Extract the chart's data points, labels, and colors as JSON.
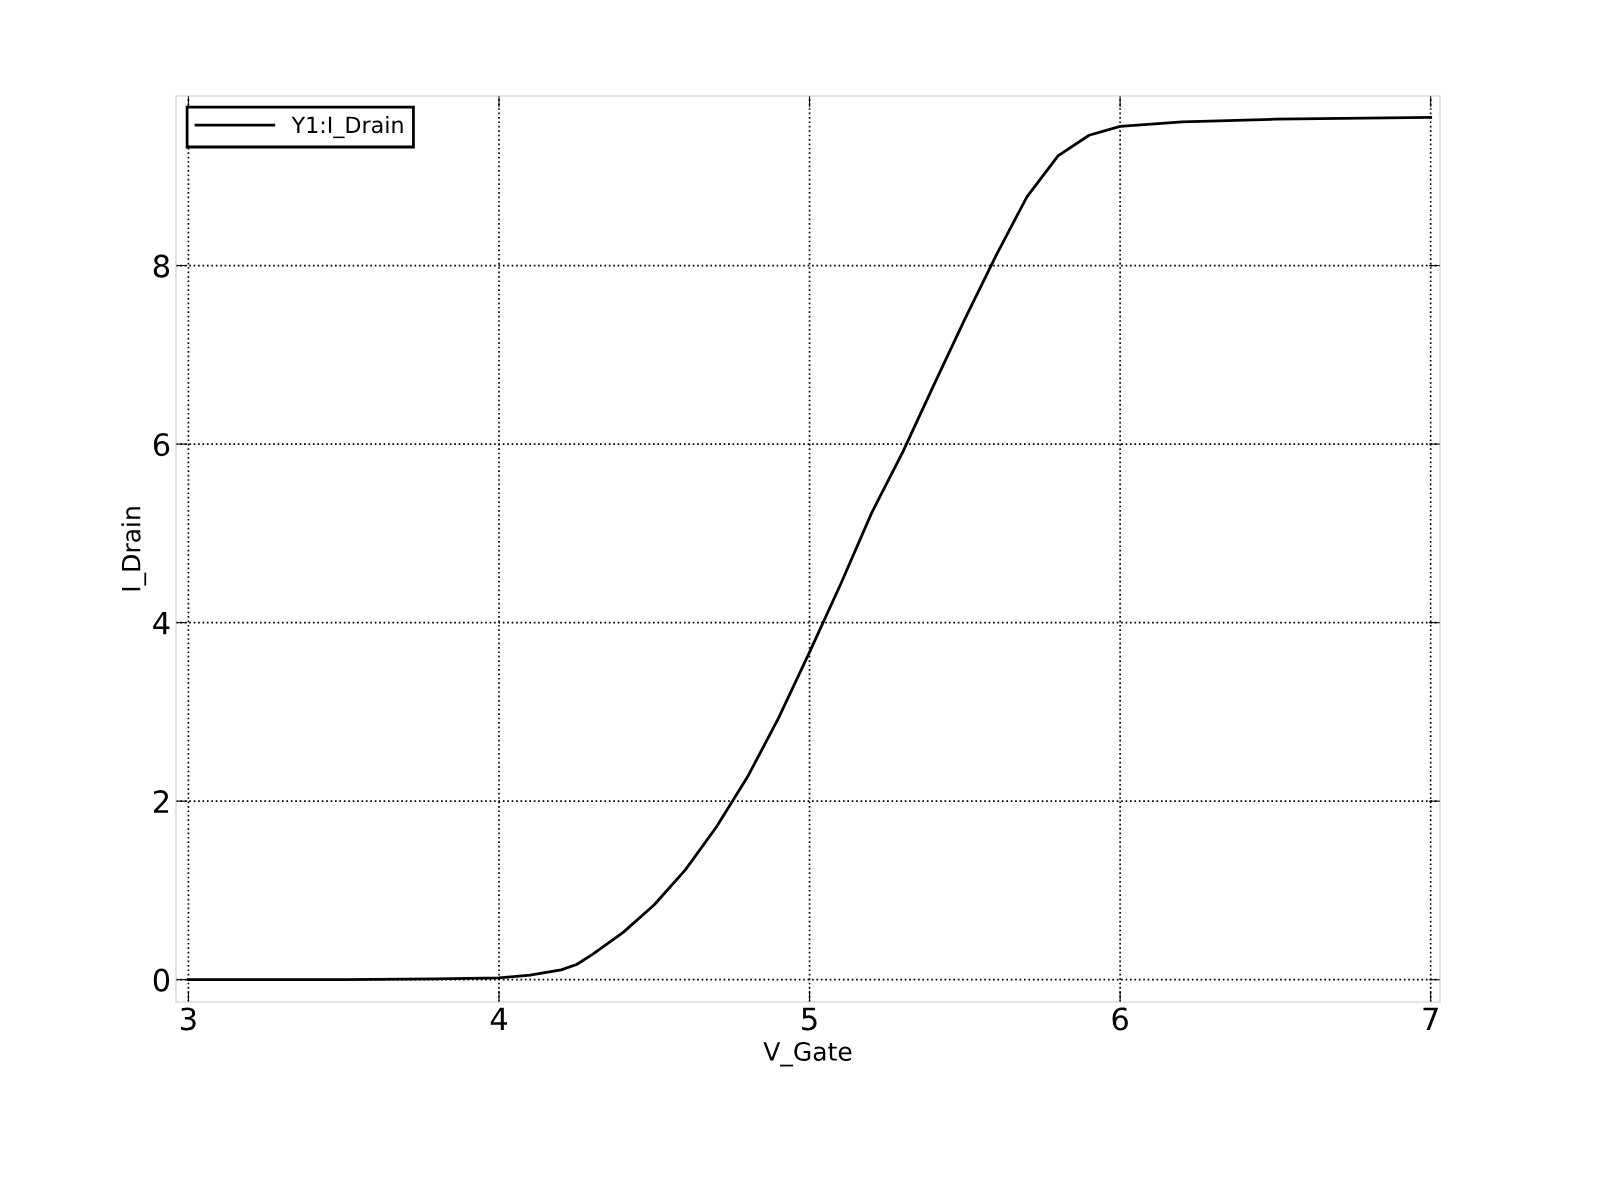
{
  "chart_data": {
    "type": "line",
    "xlabel": "V_Gate",
    "ylabel": "I_Drain",
    "x": [
      3.0,
      3.5,
      3.8,
      4.0,
      4.1,
      4.2,
      4.25,
      4.3,
      4.4,
      4.5,
      4.6,
      4.7,
      4.8,
      4.9,
      5.0,
      5.1,
      5.2,
      5.3,
      5.4,
      5.5,
      5.6,
      5.7,
      5.8,
      5.9,
      6.0,
      6.2,
      6.5,
      7.0
    ],
    "series": [
      {
        "name": "Y1:I_Drain",
        "color": "#000000",
        "values": [
          0.0,
          0.0,
          0.01,
          0.02,
          0.05,
          0.11,
          0.17,
          0.28,
          0.53,
          0.84,
          1.23,
          1.71,
          2.27,
          2.93,
          3.67,
          4.43,
          5.23,
          5.91,
          6.66,
          7.4,
          8.11,
          8.77,
          9.23,
          9.46,
          9.56,
          9.61,
          9.64,
          9.66
        ]
      }
    ],
    "xlim": [
      2.96,
      7.03
    ],
    "ylim": [
      -0.25,
      9.9
    ],
    "xticks": [
      3,
      4,
      5,
      6,
      7
    ],
    "yticks": [
      0,
      2,
      4,
      6,
      8
    ],
    "grid": true,
    "legend": "top left",
    "marker": "none",
    "line_style": "solid"
  }
}
